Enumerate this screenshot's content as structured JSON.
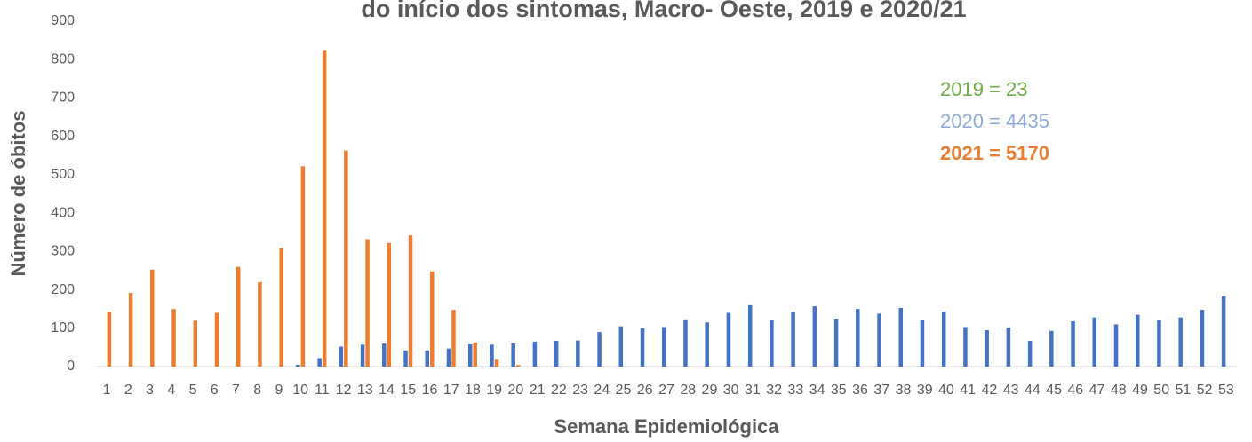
{
  "chart_data": {
    "type": "bar",
    "title": "do início dos sintomas, Macro- Oeste, 2019 e 2020/21",
    "x_label": "Semana Epidemiológica",
    "y_label": "Número de óbitos",
    "categories": [
      "1",
      "2",
      "3",
      "4",
      "5",
      "6",
      "7",
      "8",
      "9",
      "10",
      "11",
      "12",
      "13",
      "14",
      "15",
      "16",
      "17",
      "18",
      "19",
      "20",
      "21",
      "22",
      "23",
      "24",
      "25",
      "26",
      "27",
      "28",
      "29",
      "30",
      "31",
      "32",
      "33",
      "34",
      "35",
      "36",
      "37",
      "38",
      "39",
      "40",
      "41",
      "42",
      "43",
      "44",
      "45",
      "46",
      "47",
      "48",
      "49",
      "50",
      "51",
      "52",
      "53"
    ],
    "series": [
      {
        "name": "2020",
        "color": "#4472c4",
        "values": [
          0,
          0,
          0,
          0,
          0,
          0,
          0,
          0,
          0,
          5,
          22,
          52,
          57,
          60,
          42,
          42,
          47,
          58,
          57,
          60,
          65,
          67,
          68,
          90,
          105,
          100,
          103,
          123,
          115,
          140,
          160,
          122,
          143,
          157,
          125,
          150,
          138,
          153,
          122,
          143,
          103,
          95,
          102,
          67,
          93,
          118,
          128,
          110,
          135,
          122,
          128,
          148,
          183
        ]
      },
      {
        "name": "2021",
        "color": "#ed7d31",
        "values": [
          143,
          192,
          253,
          150,
          120,
          140,
          260,
          220,
          310,
          522,
          825,
          563,
          332,
          322,
          342,
          248,
          148,
          63,
          18,
          4,
          null,
          null,
          null,
          null,
          null,
          null,
          null,
          null,
          null,
          null,
          null,
          null,
          null,
          null,
          null,
          null,
          null,
          null,
          null,
          null,
          null,
          null,
          null,
          null,
          null,
          null,
          null,
          null,
          null,
          null,
          null,
          null,
          null
        ]
      }
    ],
    "annotations": [
      {
        "text": "2019 = 23",
        "color": "#70ad47",
        "bold": false
      },
      {
        "text": "2020 = 4435",
        "color": "#8faadc",
        "bold": false
      },
      {
        "text": "2021 = 5170",
        "color": "#ed7d31",
        "bold": true
      }
    ],
    "ylim": [
      0,
      900
    ],
    "yticks": [
      0,
      100,
      200,
      300,
      400,
      500,
      600,
      700,
      800,
      900
    ],
    "grid": false
  }
}
